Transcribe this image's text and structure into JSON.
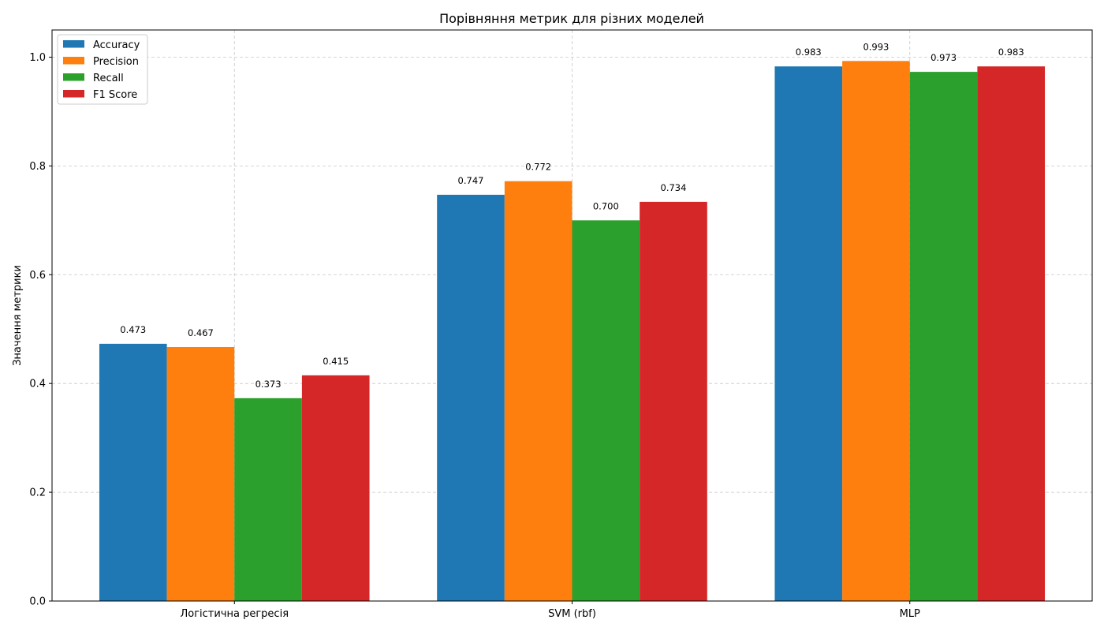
{
  "chart_data": {
    "type": "bar",
    "title": "Порівняння метрик для різних моделей",
    "xlabel": "",
    "ylabel": "Значення метрики",
    "ylim": [
      0,
      1.05
    ],
    "yticks": [
      "0.0",
      "0.2",
      "0.4",
      "0.6",
      "0.8",
      "1.0"
    ],
    "categories": [
      "Логістична регресія",
      "SVM (rbf)",
      "MLP"
    ],
    "grid": true,
    "legend_position": "top-left",
    "series": [
      {
        "name": "Accuracy",
        "color": "#1f77b4",
        "values": [
          0.473,
          0.747,
          0.983
        ],
        "labels": [
          "0.473",
          "0.747",
          "0.983"
        ]
      },
      {
        "name": "Precision",
        "color": "#ff7f0e",
        "values": [
          0.467,
          0.772,
          0.993
        ],
        "labels": [
          "0.467",
          "0.772",
          "0.993"
        ]
      },
      {
        "name": "Recall",
        "color": "#2ca02c",
        "values": [
          0.373,
          0.7,
          0.973
        ],
        "labels": [
          "0.373",
          "0.700",
          "0.973"
        ]
      },
      {
        "name": "F1 Score",
        "color": "#d62728",
        "values": [
          0.415,
          0.734,
          0.983
        ],
        "labels": [
          "0.415",
          "0.734",
          "0.983"
        ]
      }
    ]
  }
}
